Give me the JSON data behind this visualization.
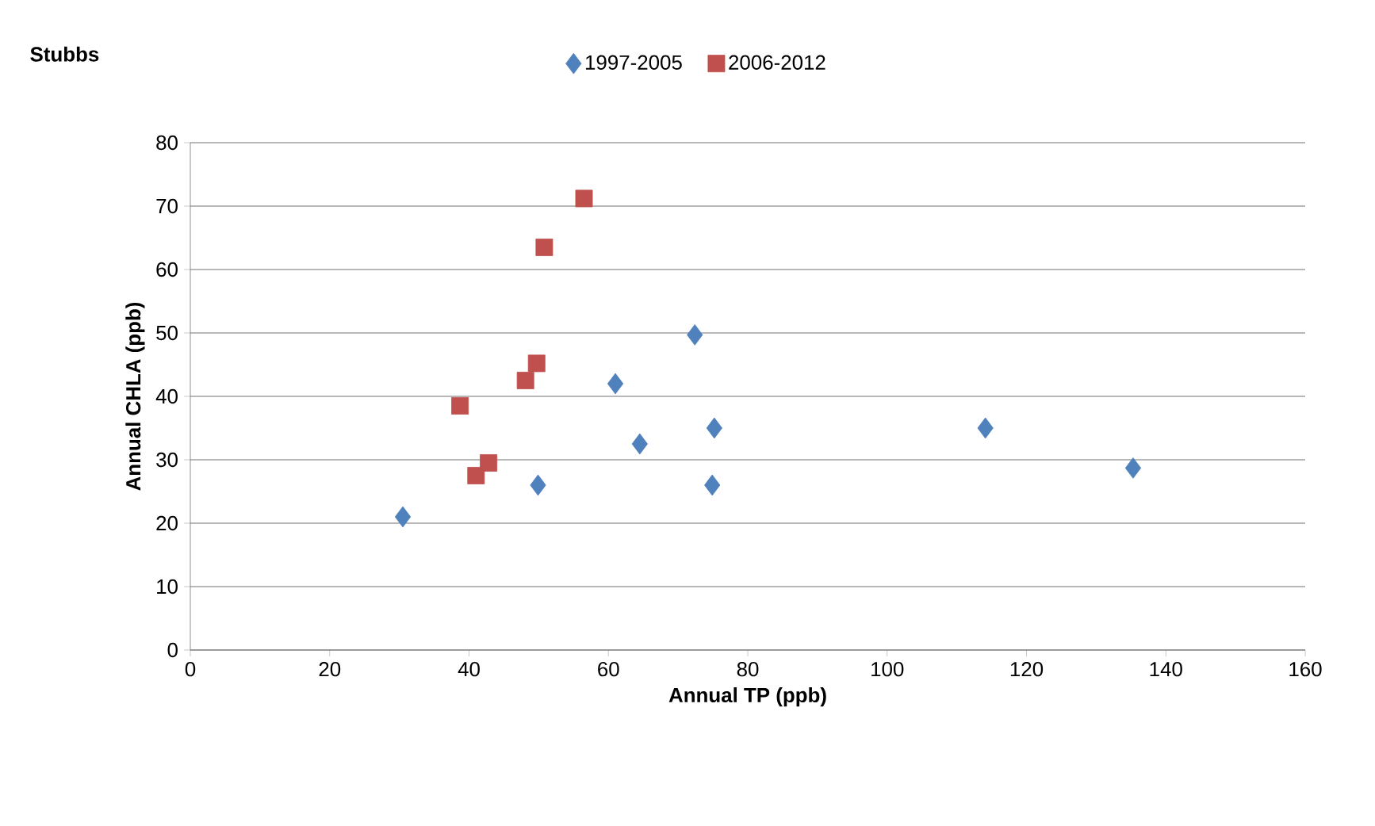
{
  "chart_data": {
    "type": "scatter",
    "title": "Stubbs",
    "xlabel": "Annual TP (ppb)",
    "ylabel": "Annual CHLA (ppb)",
    "xlim": [
      0,
      160
    ],
    "xticks": [
      0,
      20,
      40,
      60,
      80,
      100,
      120,
      140,
      160
    ],
    "ylim": [
      0,
      80
    ],
    "yticks": [
      0,
      10,
      20,
      30,
      40,
      50,
      60,
      70,
      80
    ],
    "grid": "y",
    "legend": "top",
    "series": [
      {
        "name": "1997-2005",
        "color": "#4f81bd",
        "marker": "diamond",
        "x": [
          30.5,
          49.9,
          61.0,
          64.5,
          72.4,
          75.2,
          74.9,
          114.1,
          135.3
        ],
        "values": [
          21,
          26,
          42,
          32.5,
          49.7,
          35,
          26,
          35,
          28.7
        ]
      },
      {
        "name": "2006-2012",
        "color": "#c0504d",
        "marker": "square",
        "x": [
          38.7,
          41.0,
          42.8,
          48.1,
          49.7,
          50.8,
          56.5
        ],
        "values": [
          38.5,
          27.5,
          29.5,
          42.5,
          45.2,
          63.5,
          71.2
        ]
      }
    ]
  }
}
